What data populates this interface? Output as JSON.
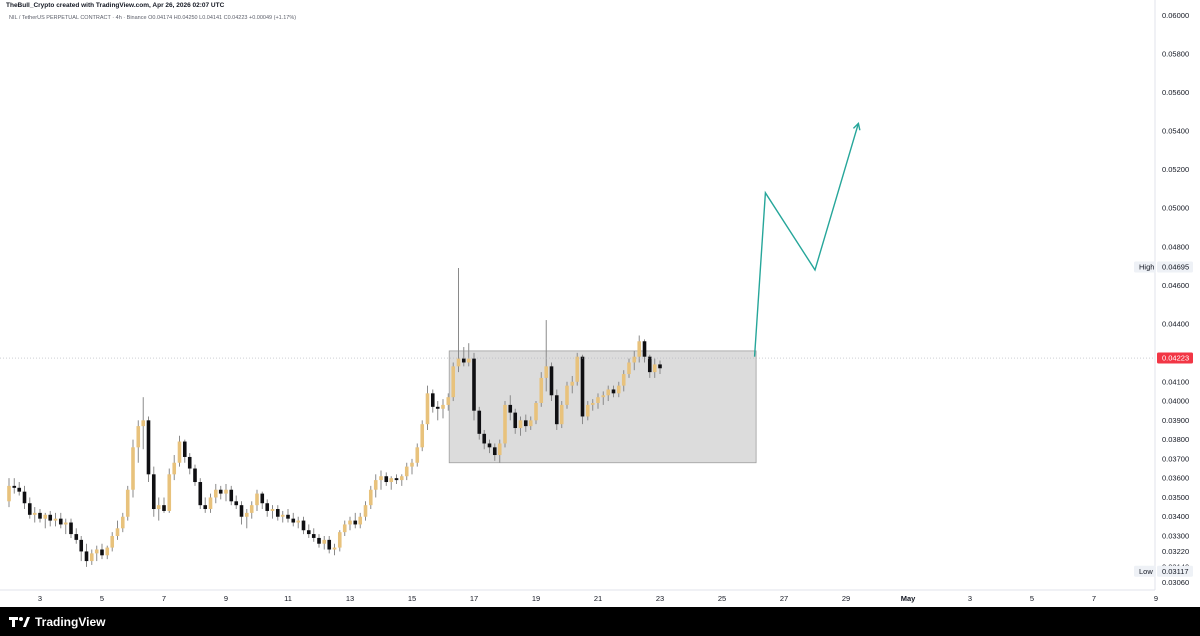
{
  "header": {
    "caption": "TheBull_Crypto created with TradingView.com, Apr 26, 2026 02:07 UTC"
  },
  "symbol_line": "NIL / TetherUS PERPETUAL CONTRACT · 4h · Binance   O0.04174  H0.04250  L0.04141  C0.04223  +0.00049 (+1.17%)",
  "footer": {
    "brand": "TradingView"
  },
  "colors": {
    "up": "#e8c27c",
    "down": "#0f0f12",
    "wick": "#8a8a8a",
    "range_box": "#dcdcdc",
    "projection": "#26a69a",
    "last_price_tag": "#f23645"
  },
  "chart_data": {
    "type": "candlestick",
    "title": "NIL / TetherUS PERPETUAL CONTRACT · 4h · Binance",
    "timeframe": "4h",
    "xlim": [
      "2026-04-02",
      "2026-05-10"
    ],
    "ylim": [
      0.0302,
      0.0608
    ],
    "y_scale": "linear",
    "x_ticks": [
      "3",
      "5",
      "7",
      "9",
      "11",
      "13",
      "15",
      "17",
      "19",
      "21",
      "23",
      "25",
      "27",
      "29",
      "May",
      "3",
      "5",
      "7",
      "9"
    ],
    "y_ticks": [
      "0.06000",
      "0.05800",
      "0.05600",
      "0.05400",
      "0.05200",
      "0.05000",
      "0.04800",
      "0.04600",
      "0.04400",
      "0.04100",
      "0.04000",
      "0.03900",
      "0.03800",
      "0.03700",
      "0.03600",
      "0.03500",
      "0.03400",
      "0.03300",
      "0.03220",
      "0.03140",
      "0.03060"
    ],
    "price_markers": [
      {
        "label": "High",
        "value": "0.04695"
      },
      {
        "label": "",
        "value": "0.04223"
      },
      {
        "label": "Low",
        "value": "0.03117"
      }
    ],
    "last_price": 0.04223,
    "range_box": {
      "from_day": 16.2,
      "to_day": 26.1,
      "top": 0.0426,
      "bottom": 0.0368
    },
    "projection_path": [
      {
        "day": 26.05,
        "price": 0.0423
      },
      {
        "day": 26.4,
        "price": 0.0508
      },
      {
        "day": 28.0,
        "price": 0.0468
      },
      {
        "day": 29.4,
        "price": 0.0544
      }
    ],
    "candles": [
      {
        "d": 2.0,
        "o": 0.0348,
        "h": 0.036,
        "l": 0.0345,
        "c": 0.0356
      },
      {
        "d": 2.17,
        "o": 0.0356,
        "h": 0.036,
        "l": 0.0352,
        "c": 0.0355
      },
      {
        "d": 2.33,
        "o": 0.0355,
        "h": 0.0358,
        "l": 0.0351,
        "c": 0.0353
      },
      {
        "d": 2.5,
        "o": 0.0353,
        "h": 0.0356,
        "l": 0.0344,
        "c": 0.0347
      },
      {
        "d": 2.67,
        "o": 0.0347,
        "h": 0.035,
        "l": 0.0339,
        "c": 0.0341
      },
      {
        "d": 2.83,
        "o": 0.0341,
        "h": 0.0345,
        "l": 0.0337,
        "c": 0.0342
      },
      {
        "d": 3.0,
        "o": 0.0342,
        "h": 0.0344,
        "l": 0.0337,
        "c": 0.0339
      },
      {
        "d": 3.17,
        "o": 0.0339,
        "h": 0.0342,
        "l": 0.0334,
        "c": 0.0341
      },
      {
        "d": 3.33,
        "o": 0.0341,
        "h": 0.0343,
        "l": 0.0335,
        "c": 0.0338
      },
      {
        "d": 3.5,
        "o": 0.0338,
        "h": 0.0342,
        "l": 0.0335,
        "c": 0.0339
      },
      {
        "d": 3.67,
        "o": 0.0339,
        "h": 0.0342,
        "l": 0.0334,
        "c": 0.0336
      },
      {
        "d": 3.83,
        "o": 0.0336,
        "h": 0.0339,
        "l": 0.0331,
        "c": 0.0337
      },
      {
        "d": 4.0,
        "o": 0.0337,
        "h": 0.0339,
        "l": 0.0329,
        "c": 0.0331
      },
      {
        "d": 4.17,
        "o": 0.0331,
        "h": 0.0334,
        "l": 0.0326,
        "c": 0.0328
      },
      {
        "d": 4.33,
        "o": 0.0328,
        "h": 0.033,
        "l": 0.0317,
        "c": 0.0322
      },
      {
        "d": 4.5,
        "o": 0.0322,
        "h": 0.0326,
        "l": 0.0314,
        "c": 0.0317
      },
      {
        "d": 4.67,
        "o": 0.0317,
        "h": 0.0323,
        "l": 0.0315,
        "c": 0.0321
      },
      {
        "d": 4.83,
        "o": 0.0321,
        "h": 0.0325,
        "l": 0.0317,
        "c": 0.0323
      },
      {
        "d": 5.0,
        "o": 0.0323,
        "h": 0.0326,
        "l": 0.0318,
        "c": 0.032
      },
      {
        "d": 5.17,
        "o": 0.032,
        "h": 0.0325,
        "l": 0.0318,
        "c": 0.0324
      },
      {
        "d": 5.33,
        "o": 0.0324,
        "h": 0.0332,
        "l": 0.0322,
        "c": 0.033
      },
      {
        "d": 5.5,
        "o": 0.033,
        "h": 0.0338,
        "l": 0.0328,
        "c": 0.0334
      },
      {
        "d": 5.67,
        "o": 0.0334,
        "h": 0.0342,
        "l": 0.0332,
        "c": 0.034
      },
      {
        "d": 5.83,
        "o": 0.034,
        "h": 0.0356,
        "l": 0.0338,
        "c": 0.0354
      },
      {
        "d": 6.0,
        "o": 0.0354,
        "h": 0.038,
        "l": 0.035,
        "c": 0.0376
      },
      {
        "d": 6.17,
        "o": 0.0376,
        "h": 0.039,
        "l": 0.0368,
        "c": 0.0387
      },
      {
        "d": 6.33,
        "o": 0.0387,
        "h": 0.0402,
        "l": 0.0375,
        "c": 0.039
      },
      {
        "d": 6.5,
        "o": 0.039,
        "h": 0.0392,
        "l": 0.0358,
        "c": 0.0362
      },
      {
        "d": 6.67,
        "o": 0.0362,
        "h": 0.0366,
        "l": 0.034,
        "c": 0.0344
      },
      {
        "d": 6.83,
        "o": 0.0344,
        "h": 0.035,
        "l": 0.0338,
        "c": 0.0346
      },
      {
        "d": 7.0,
        "o": 0.0346,
        "h": 0.035,
        "l": 0.0342,
        "c": 0.0343
      },
      {
        "d": 7.17,
        "o": 0.0343,
        "h": 0.0365,
        "l": 0.0342,
        "c": 0.0362
      },
      {
        "d": 7.33,
        "o": 0.0362,
        "h": 0.0372,
        "l": 0.0359,
        "c": 0.0368
      },
      {
        "d": 7.5,
        "o": 0.0368,
        "h": 0.0382,
        "l": 0.0366,
        "c": 0.0379
      },
      {
        "d": 7.67,
        "o": 0.0379,
        "h": 0.038,
        "l": 0.0368,
        "c": 0.0371
      },
      {
        "d": 7.83,
        "o": 0.0371,
        "h": 0.0373,
        "l": 0.0362,
        "c": 0.0365
      },
      {
        "d": 8.0,
        "o": 0.0365,
        "h": 0.0367,
        "l": 0.0356,
        "c": 0.0358
      },
      {
        "d": 8.17,
        "o": 0.0358,
        "h": 0.036,
        "l": 0.0344,
        "c": 0.0346
      },
      {
        "d": 8.33,
        "o": 0.0346,
        "h": 0.035,
        "l": 0.0342,
        "c": 0.0344
      },
      {
        "d": 8.5,
        "o": 0.0344,
        "h": 0.0352,
        "l": 0.0342,
        "c": 0.035
      },
      {
        "d": 8.67,
        "o": 0.035,
        "h": 0.0357,
        "l": 0.0347,
        "c": 0.0354
      },
      {
        "d": 8.83,
        "o": 0.0354,
        "h": 0.0356,
        "l": 0.0349,
        "c": 0.0352
      },
      {
        "d": 9.0,
        "o": 0.0352,
        "h": 0.0357,
        "l": 0.0348,
        "c": 0.0354
      },
      {
        "d": 9.17,
        "o": 0.0354,
        "h": 0.0356,
        "l": 0.0346,
        "c": 0.0348
      },
      {
        "d": 9.33,
        "o": 0.0348,
        "h": 0.0351,
        "l": 0.0344,
        "c": 0.0346
      },
      {
        "d": 9.5,
        "o": 0.0346,
        "h": 0.0348,
        "l": 0.0336,
        "c": 0.034
      },
      {
        "d": 9.67,
        "o": 0.034,
        "h": 0.0344,
        "l": 0.0334,
        "c": 0.0342
      },
      {
        "d": 9.83,
        "o": 0.0342,
        "h": 0.0348,
        "l": 0.0339,
        "c": 0.0346
      },
      {
        "d": 10.0,
        "o": 0.0346,
        "h": 0.0354,
        "l": 0.0343,
        "c": 0.0352
      },
      {
        "d": 10.17,
        "o": 0.0352,
        "h": 0.0353,
        "l": 0.0344,
        "c": 0.0347
      },
      {
        "d": 10.33,
        "o": 0.0347,
        "h": 0.0349,
        "l": 0.034,
        "c": 0.0343
      },
      {
        "d": 10.5,
        "o": 0.0343,
        "h": 0.0346,
        "l": 0.0339,
        "c": 0.0344
      },
      {
        "d": 10.67,
        "o": 0.0344,
        "h": 0.0346,
        "l": 0.0338,
        "c": 0.034
      },
      {
        "d": 10.83,
        "o": 0.034,
        "h": 0.0343,
        "l": 0.0337,
        "c": 0.0341
      },
      {
        "d": 11.0,
        "o": 0.0341,
        "h": 0.0344,
        "l": 0.0337,
        "c": 0.0339
      },
      {
        "d": 11.17,
        "o": 0.0339,
        "h": 0.0342,
        "l": 0.0335,
        "c": 0.0337
      },
      {
        "d": 11.33,
        "o": 0.0337,
        "h": 0.034,
        "l": 0.0334,
        "c": 0.0338
      },
      {
        "d": 11.5,
        "o": 0.0338,
        "h": 0.034,
        "l": 0.0331,
        "c": 0.0333
      },
      {
        "d": 11.67,
        "o": 0.0333,
        "h": 0.0336,
        "l": 0.0329,
        "c": 0.0331
      },
      {
        "d": 11.83,
        "o": 0.0331,
        "h": 0.0334,
        "l": 0.0327,
        "c": 0.0329
      },
      {
        "d": 12.0,
        "o": 0.0329,
        "h": 0.0331,
        "l": 0.0324,
        "c": 0.0326
      },
      {
        "d": 12.17,
        "o": 0.0326,
        "h": 0.033,
        "l": 0.0323,
        "c": 0.0328
      },
      {
        "d": 12.33,
        "o": 0.0328,
        "h": 0.033,
        "l": 0.0321,
        "c": 0.0323
      },
      {
        "d": 12.5,
        "o": 0.0323,
        "h": 0.0326,
        "l": 0.032,
        "c": 0.0324
      },
      {
        "d": 12.67,
        "o": 0.0324,
        "h": 0.0333,
        "l": 0.0322,
        "c": 0.0332
      },
      {
        "d": 12.83,
        "o": 0.0332,
        "h": 0.0338,
        "l": 0.033,
        "c": 0.0336
      },
      {
        "d": 13.0,
        "o": 0.0336,
        "h": 0.034,
        "l": 0.0333,
        "c": 0.0338
      },
      {
        "d": 13.17,
        "o": 0.0338,
        "h": 0.0342,
        "l": 0.0334,
        "c": 0.0336
      },
      {
        "d": 13.33,
        "o": 0.0336,
        "h": 0.0342,
        "l": 0.0334,
        "c": 0.034
      },
      {
        "d": 13.5,
        "o": 0.034,
        "h": 0.0348,
        "l": 0.0338,
        "c": 0.0346
      },
      {
        "d": 13.67,
        "o": 0.0346,
        "h": 0.0356,
        "l": 0.0344,
        "c": 0.0354
      },
      {
        "d": 13.83,
        "o": 0.0354,
        "h": 0.0362,
        "l": 0.035,
        "c": 0.0359
      },
      {
        "d": 14.0,
        "o": 0.0359,
        "h": 0.0364,
        "l": 0.0354,
        "c": 0.0361
      },
      {
        "d": 14.17,
        "o": 0.0361,
        "h": 0.0363,
        "l": 0.0356,
        "c": 0.0358
      },
      {
        "d": 14.33,
        "o": 0.0358,
        "h": 0.0361,
        "l": 0.0354,
        "c": 0.036
      },
      {
        "d": 14.5,
        "o": 0.036,
        "h": 0.0362,
        "l": 0.0357,
        "c": 0.0359
      },
      {
        "d": 14.67,
        "o": 0.0359,
        "h": 0.0362,
        "l": 0.0356,
        "c": 0.0361
      },
      {
        "d": 14.83,
        "o": 0.0361,
        "h": 0.0368,
        "l": 0.0359,
        "c": 0.0366
      },
      {
        "d": 15.0,
        "o": 0.0366,
        "h": 0.037,
        "l": 0.0362,
        "c": 0.0368
      },
      {
        "d": 15.17,
        "o": 0.0368,
        "h": 0.0378,
        "l": 0.0366,
        "c": 0.0376
      },
      {
        "d": 15.33,
        "o": 0.0376,
        "h": 0.039,
        "l": 0.0374,
        "c": 0.0388
      },
      {
        "d": 15.5,
        "o": 0.0388,
        "h": 0.0408,
        "l": 0.0385,
        "c": 0.0404
      },
      {
        "d": 15.67,
        "o": 0.0404,
        "h": 0.0406,
        "l": 0.0394,
        "c": 0.0397
      },
      {
        "d": 15.83,
        "o": 0.0397,
        "h": 0.04,
        "l": 0.039,
        "c": 0.0396
      },
      {
        "d": 16.0,
        "o": 0.0396,
        "h": 0.0401,
        "l": 0.0391,
        "c": 0.0398
      },
      {
        "d": 16.17,
        "o": 0.0398,
        "h": 0.0404,
        "l": 0.0395,
        "c": 0.0402
      },
      {
        "d": 16.33,
        "o": 0.0402,
        "h": 0.042,
        "l": 0.04,
        "c": 0.0418
      },
      {
        "d": 16.5,
        "o": 0.0418,
        "h": 0.0469,
        "l": 0.0415,
        "c": 0.0422
      },
      {
        "d": 16.67,
        "o": 0.0422,
        "h": 0.0428,
        "l": 0.0418,
        "c": 0.042
      },
      {
        "d": 16.83,
        "o": 0.042,
        "h": 0.043,
        "l": 0.0418,
        "c": 0.0422
      },
      {
        "d": 17.0,
        "o": 0.0422,
        "h": 0.0425,
        "l": 0.039,
        "c": 0.0395
      },
      {
        "d": 17.17,
        "o": 0.0395,
        "h": 0.0397,
        "l": 0.038,
        "c": 0.0383
      },
      {
        "d": 17.33,
        "o": 0.0383,
        "h": 0.0385,
        "l": 0.0375,
        "c": 0.0378
      },
      {
        "d": 17.5,
        "o": 0.0378,
        "h": 0.038,
        "l": 0.0373,
        "c": 0.0376
      },
      {
        "d": 17.67,
        "o": 0.0376,
        "h": 0.0378,
        "l": 0.0369,
        "c": 0.0372
      },
      {
        "d": 17.83,
        "o": 0.0372,
        "h": 0.038,
        "l": 0.0368,
        "c": 0.0378
      },
      {
        "d": 18.0,
        "o": 0.0378,
        "h": 0.04,
        "l": 0.0376,
        "c": 0.0398
      },
      {
        "d": 18.17,
        "o": 0.0398,
        "h": 0.0403,
        "l": 0.039,
        "c": 0.0394
      },
      {
        "d": 18.33,
        "o": 0.0394,
        "h": 0.0396,
        "l": 0.0383,
        "c": 0.0386
      },
      {
        "d": 18.5,
        "o": 0.0386,
        "h": 0.0392,
        "l": 0.0382,
        "c": 0.039
      },
      {
        "d": 18.67,
        "o": 0.039,
        "h": 0.0393,
        "l": 0.0384,
        "c": 0.0387
      },
      {
        "d": 18.83,
        "o": 0.0387,
        "h": 0.0392,
        "l": 0.0385,
        "c": 0.039
      },
      {
        "d": 19.0,
        "o": 0.039,
        "h": 0.04,
        "l": 0.0388,
        "c": 0.0399
      },
      {
        "d": 19.17,
        "o": 0.0399,
        "h": 0.0415,
        "l": 0.0397,
        "c": 0.0412
      },
      {
        "d": 19.33,
        "o": 0.0412,
        "h": 0.0442,
        "l": 0.0405,
        "c": 0.0418
      },
      {
        "d": 19.5,
        "o": 0.0418,
        "h": 0.042,
        "l": 0.04,
        "c": 0.0403
      },
      {
        "d": 19.67,
        "o": 0.0403,
        "h": 0.0406,
        "l": 0.0385,
        "c": 0.0388
      },
      {
        "d": 19.83,
        "o": 0.0388,
        "h": 0.04,
        "l": 0.0386,
        "c": 0.0398
      },
      {
        "d": 20.0,
        "o": 0.0398,
        "h": 0.041,
        "l": 0.0396,
        "c": 0.0408
      },
      {
        "d": 20.17,
        "o": 0.0408,
        "h": 0.0413,
        "l": 0.0404,
        "c": 0.041
      },
      {
        "d": 20.33,
        "o": 0.041,
        "h": 0.0425,
        "l": 0.0408,
        "c": 0.0423
      },
      {
        "d": 20.5,
        "o": 0.0423,
        "h": 0.0424,
        "l": 0.0388,
        "c": 0.0392
      },
      {
        "d": 20.67,
        "o": 0.0392,
        "h": 0.04,
        "l": 0.039,
        "c": 0.0398
      },
      {
        "d": 20.83,
        "o": 0.0398,
        "h": 0.0401,
        "l": 0.0395,
        "c": 0.0399
      },
      {
        "d": 21.0,
        "o": 0.0399,
        "h": 0.0404,
        "l": 0.0396,
        "c": 0.0402
      },
      {
        "d": 21.17,
        "o": 0.0402,
        "h": 0.0405,
        "l": 0.0398,
        "c": 0.0403
      },
      {
        "d": 21.33,
        "o": 0.0403,
        "h": 0.0408,
        "l": 0.04,
        "c": 0.0406
      },
      {
        "d": 21.5,
        "o": 0.0406,
        "h": 0.0408,
        "l": 0.0402,
        "c": 0.0404
      },
      {
        "d": 21.67,
        "o": 0.0404,
        "h": 0.041,
        "l": 0.0402,
        "c": 0.0408
      },
      {
        "d": 21.83,
        "o": 0.0408,
        "h": 0.0416,
        "l": 0.0405,
        "c": 0.0414
      },
      {
        "d": 22.0,
        "o": 0.0414,
        "h": 0.0422,
        "l": 0.0412,
        "c": 0.042
      },
      {
        "d": 22.17,
        "o": 0.042,
        "h": 0.0426,
        "l": 0.0416,
        "c": 0.0423
      },
      {
        "d": 22.33,
        "o": 0.0423,
        "h": 0.0434,
        "l": 0.042,
        "c": 0.0431
      },
      {
        "d": 22.5,
        "o": 0.0431,
        "h": 0.0432,
        "l": 0.042,
        "c": 0.0423
      },
      {
        "d": 22.67,
        "o": 0.0423,
        "h": 0.0424,
        "l": 0.0412,
        "c": 0.0415
      },
      {
        "d": 22.83,
        "o": 0.0415,
        "h": 0.0422,
        "l": 0.0412,
        "c": 0.0419
      },
      {
        "d": 23.0,
        "o": 0.0419,
        "h": 0.0421,
        "l": 0.0414,
        "c": 0.0417
      }
    ]
  }
}
